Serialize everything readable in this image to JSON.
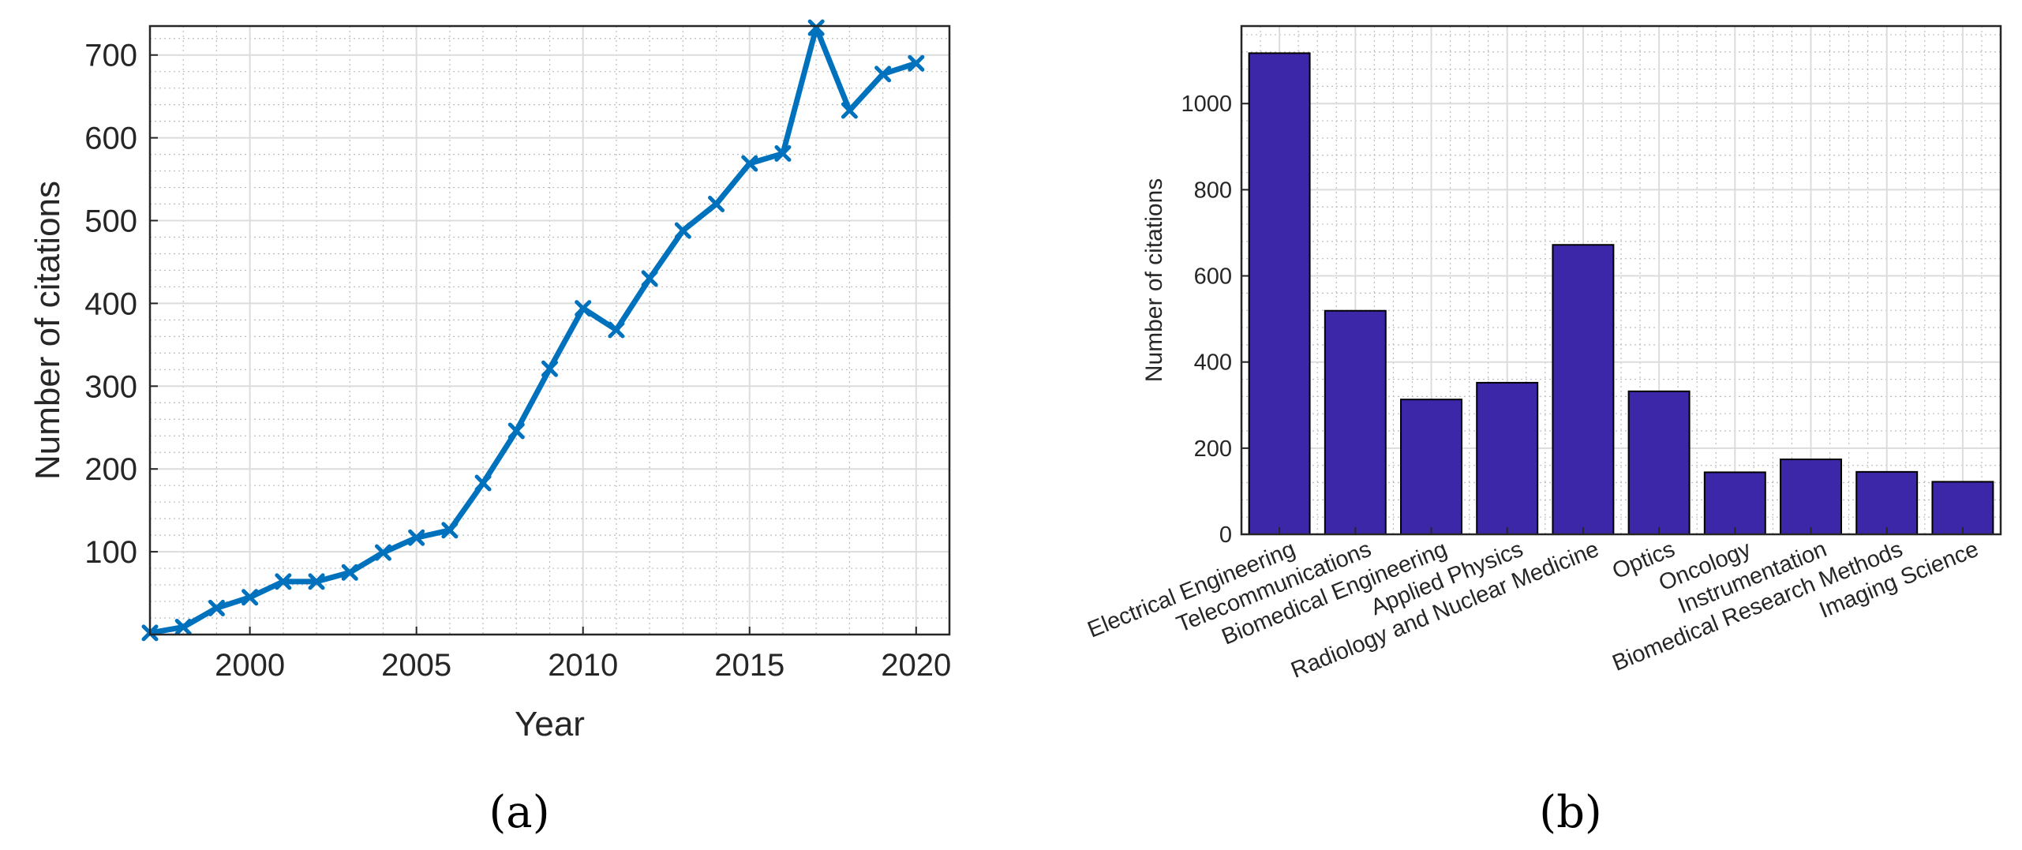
{
  "chart_data": [
    {
      "type": "line",
      "panel_label": "(a)",
      "xlabel": "Year",
      "ylabel": "Number of citations",
      "xlim": [
        1997,
        2021
      ],
      "ylim": [
        0,
        735
      ],
      "xticks": [
        2000,
        2005,
        2010,
        2015,
        2020
      ],
      "yticks": [
        100,
        200,
        300,
        400,
        500,
        600,
        700
      ],
      "grid": true,
      "marker": "x",
      "color": "#0072BD",
      "x": [
        1997,
        1998,
        1999,
        2000,
        2001,
        2002,
        2003,
        2004,
        2005,
        2006,
        2007,
        2008,
        2009,
        2010,
        2011,
        2012,
        2013,
        2014,
        2015,
        2016,
        2017,
        2018,
        2019,
        2020
      ],
      "y": [
        2,
        9,
        32,
        45,
        64,
        64,
        75,
        99,
        117,
        126,
        183,
        246,
        321,
        394,
        368,
        430,
        488,
        520,
        569,
        581,
        733,
        633,
        677,
        690
      ]
    },
    {
      "type": "bar",
      "panel_label": "(b)",
      "xlabel": "",
      "ylabel": "Number of citations",
      "ylim": [
        0,
        1180
      ],
      "yticks": [
        0,
        200,
        400,
        600,
        800,
        1000
      ],
      "grid": true,
      "color": "#3C27A8",
      "categories": [
        "Electrical Engineering",
        "Telecommunications",
        "Biomedical Engineering",
        "Applied Physics",
        "Radiology and Nuclear Medicine",
        "Optics",
        "Oncology",
        "Instrumentation",
        "Biomedical Research Methods",
        "Imaging Science"
      ],
      "values": [
        1117,
        519,
        313,
        352,
        672,
        332,
        144,
        174,
        145,
        122
      ]
    }
  ]
}
